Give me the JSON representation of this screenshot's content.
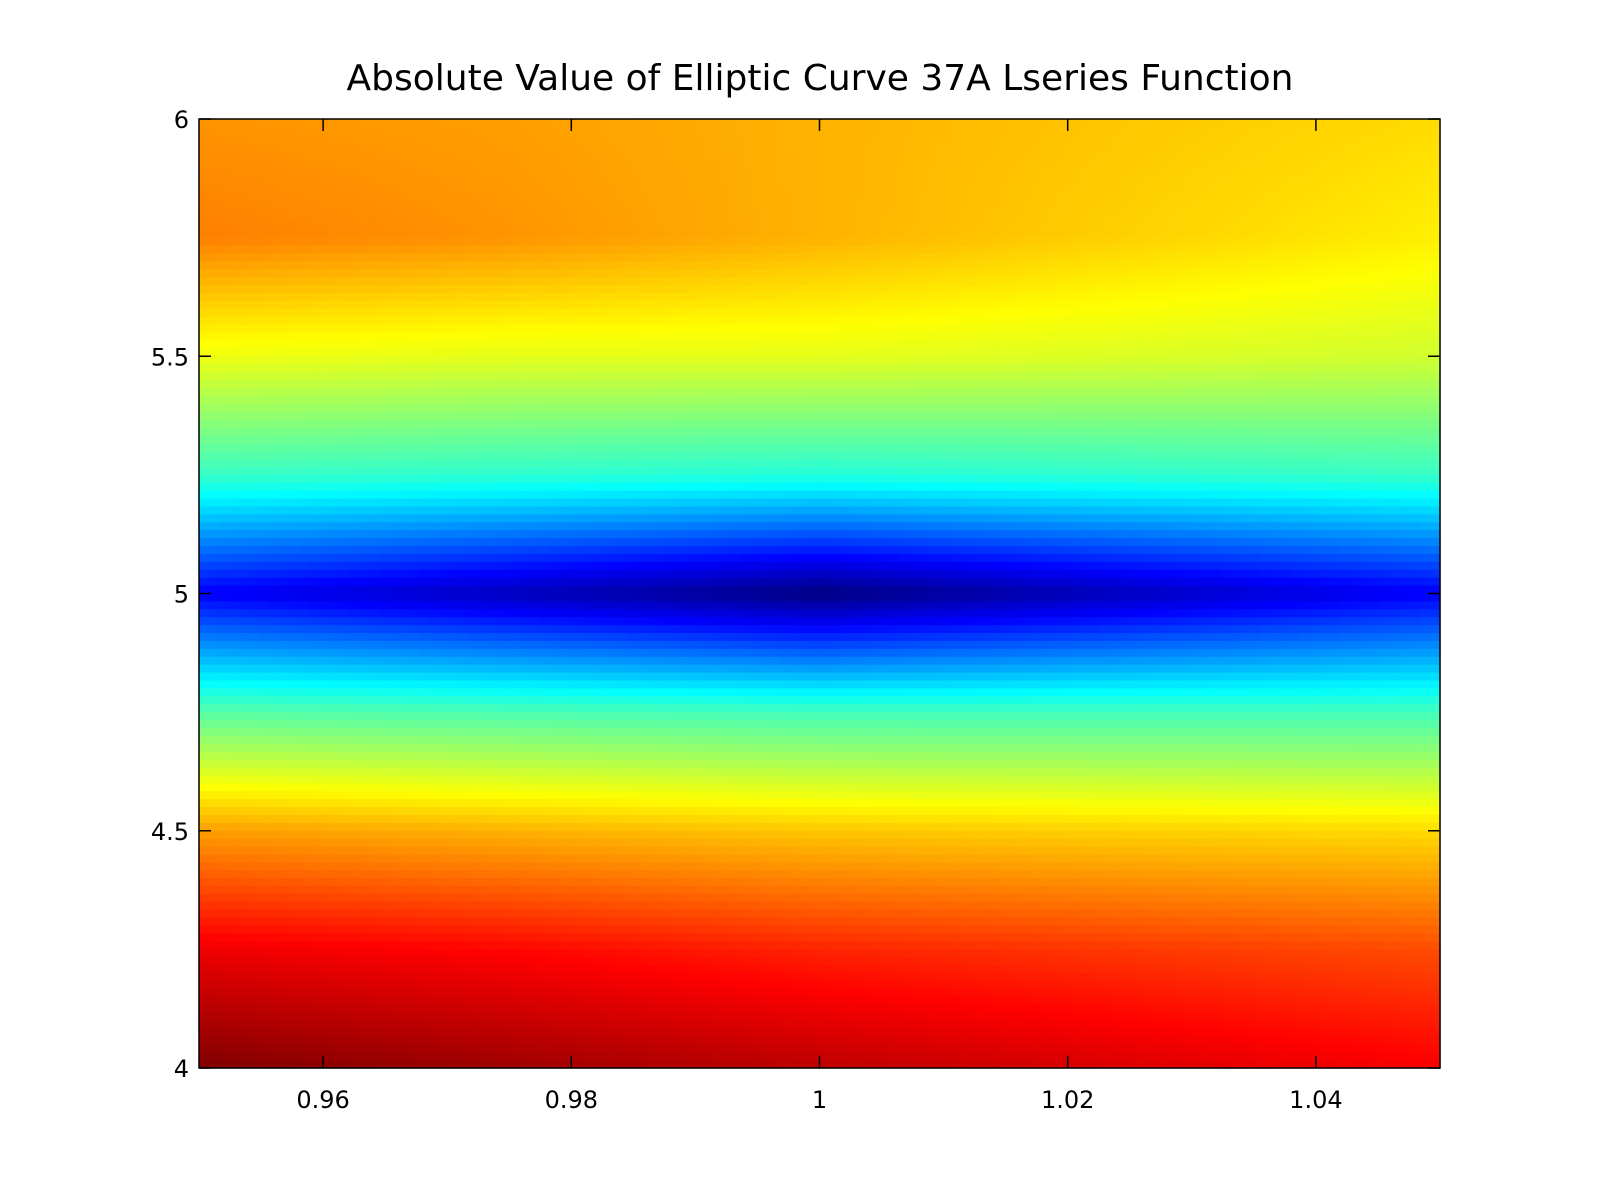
{
  "chart_data": {
    "type": "heatmap",
    "title": "Absolute Value of Elliptic Curve 37A Lseries Function",
    "xlabel": "",
    "ylabel": "",
    "xlim": [
      0.95,
      1.05
    ],
    "ylim": [
      4,
      6
    ],
    "x_ticks": [
      "0.96",
      "0.98",
      "1",
      "1.02",
      "1.04"
    ],
    "x_tick_values": [
      0.96,
      0.98,
      1.0,
      1.02,
      1.04
    ],
    "y_ticks": [
      "4",
      "4.5",
      "5",
      "5.5",
      "6"
    ],
    "y_tick_values": [
      4,
      4.5,
      5,
      5.5,
      6
    ],
    "colormap": "jet",
    "grid": false,
    "colorbar": false,
    "z_normalized_note_free": true,
    "x": [
      0.95,
      0.975,
      1.0,
      1.025,
      1.05
    ],
    "y": [
      6,
      5.75,
      5.5,
      5.25,
      5,
      4.75,
      4.5,
      4.25,
      4
    ],
    "z": [
      [
        0.73,
        0.72,
        0.7,
        0.68,
        0.66
      ],
      [
        0.75,
        0.73,
        0.7,
        0.67,
        0.64
      ],
      [
        0.61,
        0.6,
        0.6,
        0.59,
        0.58
      ],
      [
        0.43,
        0.42,
        0.41,
        0.42,
        0.43
      ],
      [
        0.12,
        0.06,
        0.0,
        0.06,
        0.12
      ],
      [
        0.46,
        0.45,
        0.44,
        0.44,
        0.44
      ],
      [
        0.72,
        0.7,
        0.68,
        0.67,
        0.66
      ],
      [
        0.89,
        0.87,
        0.84,
        0.82,
        0.8
      ],
      [
        1.0,
        0.97,
        0.94,
        0.91,
        0.88
      ]
    ]
  }
}
